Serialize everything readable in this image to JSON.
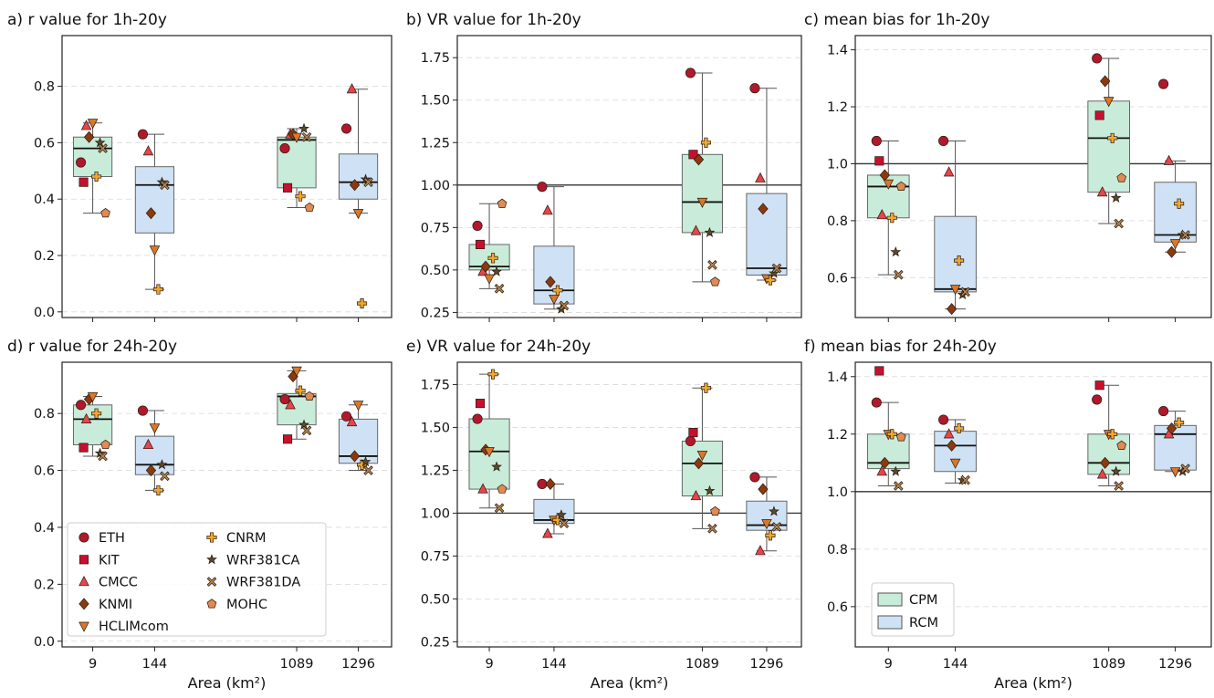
{
  "figure": {
    "xlabel": "Area (km²)"
  },
  "colors": {
    "CPM": "#c8ecd9",
    "RCM": "#cfe2f5",
    "ETH": "#b2182b",
    "KIT": "#c8102e",
    "CMCC": "#e8444a",
    "KNMI": "#8b3a0f",
    "HCLIMcom": "#d9782b",
    "CNRM": "#f2a72c",
    "WRF381CA": "#5a4a2a",
    "WRF381DA": "#b8864e",
    "MOHC": "#e08a54"
  },
  "legend_models": [
    {
      "name": "ETH",
      "marker": "circle",
      "icon": "circle-icon"
    },
    {
      "name": "KIT",
      "marker": "square",
      "icon": "square-icon"
    },
    {
      "name": "CMCC",
      "marker": "triangle-up",
      "icon": "triangle-up-icon"
    },
    {
      "name": "KNMI",
      "marker": "diamond",
      "icon": "diamond-icon"
    },
    {
      "name": "HCLIMcom",
      "marker": "triangle-down",
      "icon": "triangle-down-icon"
    },
    {
      "name": "CNRM",
      "marker": "plus",
      "icon": "plus-icon"
    },
    {
      "name": "WRF381CA",
      "marker": "star",
      "icon": "star-icon"
    },
    {
      "name": "WRF381DA",
      "marker": "x",
      "icon": "x-icon"
    },
    {
      "name": "MOHC",
      "marker": "pentagon",
      "icon": "pentagon-icon"
    }
  ],
  "legend_types": [
    "CPM",
    "RCM"
  ],
  "chart_data": [
    {
      "type": "box",
      "title": "a) r value for 1h-20y",
      "categories": [
        "9",
        "144",
        "1089",
        "1296"
      ],
      "box_types": [
        "CPM",
        "RCM",
        "CPM",
        "RCM"
      ],
      "ylim": [
        -0.02,
        0.98
      ],
      "yticks": [
        0.0,
        0.2,
        0.4,
        0.6,
        0.8
      ],
      "ytick_labels": [
        "0.0",
        "0.2",
        "0.4",
        "0.6",
        "0.8"
      ],
      "reference_line": null,
      "boxes": [
        {
          "q1": 0.48,
          "median": 0.58,
          "q3": 0.62,
          "whisker_low": 0.35,
          "whisker_high": 0.67
        },
        {
          "q1": 0.28,
          "median": 0.45,
          "q3": 0.515,
          "whisker_low": 0.08,
          "whisker_high": 0.63
        },
        {
          "q1": 0.44,
          "median": 0.61,
          "q3": 0.62,
          "whisker_low": 0.37,
          "whisker_high": 0.65
        },
        {
          "q1": 0.4,
          "median": 0.46,
          "q3": 0.56,
          "whisker_low": 0.35,
          "whisker_high": 0.79
        }
      ],
      "points": {
        "ETH": [
          0.53,
          0.63,
          0.58,
          0.65
        ],
        "KIT": [
          0.46,
          null,
          0.44,
          null
        ],
        "CMCC": [
          0.66,
          0.57,
          0.63,
          0.79
        ],
        "KNMI": [
          0.62,
          0.35,
          0.63,
          0.45
        ],
        "HCLIMcom": [
          0.67,
          0.22,
          0.62,
          0.35
        ],
        "CNRM": [
          0.48,
          0.08,
          0.41,
          0.03
        ],
        "WRF381CA": [
          0.6,
          0.46,
          0.65,
          0.47
        ],
        "WRF381DA": [
          0.58,
          0.45,
          0.62,
          0.46
        ],
        "MOHC": [
          0.35,
          null,
          0.37,
          null
        ]
      }
    },
    {
      "type": "box",
      "title": "b) VR value for 1h-20y",
      "categories": [
        "9",
        "144",
        "1089",
        "1296"
      ],
      "box_types": [
        "CPM",
        "RCM",
        "CPM",
        "RCM"
      ],
      "ylim": [
        0.22,
        1.88
      ],
      "yticks": [
        0.25,
        0.5,
        0.75,
        1.0,
        1.25,
        1.5,
        1.75
      ],
      "ytick_labels": [
        "0.25",
        "0.50",
        "0.75",
        "1.00",
        "1.25",
        "1.50",
        "1.75"
      ],
      "reference_line": 1.0,
      "boxes": [
        {
          "q1": 0.5,
          "median": 0.52,
          "q3": 0.65,
          "whisker_low": 0.39,
          "whisker_high": 0.89
        },
        {
          "q1": 0.3,
          "median": 0.38,
          "q3": 0.64,
          "whisker_low": 0.27,
          "whisker_high": 0.99
        },
        {
          "q1": 0.72,
          "median": 0.9,
          "q3": 1.18,
          "whisker_low": 0.43,
          "whisker_high": 1.66
        },
        {
          "q1": 0.47,
          "median": 0.51,
          "q3": 0.95,
          "whisker_low": 0.44,
          "whisker_high": 1.57
        }
      ],
      "points": {
        "ETH": [
          0.76,
          0.99,
          1.66,
          1.57
        ],
        "KIT": [
          0.65,
          null,
          1.18,
          null
        ],
        "CMCC": [
          0.49,
          0.85,
          0.73,
          1.04
        ],
        "KNMI": [
          0.52,
          0.43,
          1.15,
          0.86
        ],
        "HCLIMcom": [
          0.45,
          0.33,
          0.9,
          0.45
        ],
        "CNRM": [
          0.57,
          0.38,
          1.25,
          0.44
        ],
        "WRF381CA": [
          0.49,
          0.27,
          0.72,
          0.48
        ],
        "WRF381DA": [
          0.39,
          0.29,
          0.53,
          0.51
        ],
        "MOHC": [
          0.89,
          null,
          0.43,
          null
        ]
      }
    },
    {
      "type": "box",
      "title": "c) mean bias for 1h-20y",
      "categories": [
        "9",
        "144",
        "1089",
        "1296"
      ],
      "box_types": [
        "CPM",
        "RCM",
        "CPM",
        "RCM"
      ],
      "ylim": [
        0.46,
        1.45
      ],
      "yticks": [
        0.6,
        0.8,
        1.0,
        1.2,
        1.4
      ],
      "ytick_labels": [
        "0.6",
        "0.8",
        "1.0",
        "1.2",
        "1.4"
      ],
      "reference_line": 1.0,
      "boxes": [
        {
          "q1": 0.81,
          "median": 0.92,
          "q3": 0.96,
          "whisker_low": 0.61,
          "whisker_high": 1.08
        },
        {
          "q1": 0.55,
          "median": 0.56,
          "q3": 0.815,
          "whisker_low": 0.49,
          "whisker_high": 1.08
        },
        {
          "q1": 0.9,
          "median": 1.09,
          "q3": 1.22,
          "whisker_low": 0.79,
          "whisker_high": 1.37
        },
        {
          "q1": 0.725,
          "median": 0.75,
          "q3": 0.935,
          "whisker_low": 0.69,
          "whisker_high": 1.01
        }
      ],
      "points": {
        "ETH": [
          1.08,
          1.08,
          1.37,
          1.28
        ],
        "KIT": [
          1.01,
          null,
          1.17,
          null
        ],
        "CMCC": [
          0.82,
          0.97,
          0.9,
          1.01
        ],
        "KNMI": [
          0.96,
          0.49,
          1.29,
          0.69
        ],
        "HCLIMcom": [
          0.93,
          0.56,
          1.22,
          0.72
        ],
        "CNRM": [
          0.81,
          0.66,
          1.09,
          0.86
        ],
        "WRF381CA": [
          0.69,
          0.54,
          0.88,
          0.75
        ],
        "WRF381DA": [
          0.61,
          0.55,
          0.79,
          0.75
        ],
        "MOHC": [
          0.92,
          null,
          0.95,
          null
        ]
      }
    },
    {
      "type": "box",
      "title": "d) r value for 24h-20y",
      "categories": [
        "9",
        "144",
        "1089",
        "1296"
      ],
      "box_types": [
        "CPM",
        "RCM",
        "CPM",
        "RCM"
      ],
      "ylim": [
        -0.02,
        0.98
      ],
      "yticks": [
        0.0,
        0.2,
        0.4,
        0.6,
        0.8
      ],
      "ytick_labels": [
        "0.0",
        "0.2",
        "0.4",
        "0.6",
        "0.8"
      ],
      "reference_line": null,
      "boxes": [
        {
          "q1": 0.69,
          "median": 0.78,
          "q3": 0.83,
          "whisker_low": 0.65,
          "whisker_high": 0.86
        },
        {
          "q1": 0.585,
          "median": 0.62,
          "q3": 0.72,
          "whisker_low": 0.53,
          "whisker_high": 0.81
        },
        {
          "q1": 0.76,
          "median": 0.86,
          "q3": 0.87,
          "whisker_low": 0.71,
          "whisker_high": 0.95
        },
        {
          "q1": 0.625,
          "median": 0.65,
          "q3": 0.78,
          "whisker_low": 0.6,
          "whisker_high": 0.83
        }
      ],
      "points": {
        "ETH": [
          0.83,
          0.81,
          0.85,
          0.79
        ],
        "KIT": [
          0.68,
          null,
          0.71,
          null
        ],
        "CMCC": [
          0.78,
          0.69,
          0.83,
          0.77
        ],
        "KNMI": [
          0.85,
          0.6,
          0.93,
          0.65
        ],
        "HCLIMcom": [
          0.86,
          0.75,
          0.95,
          0.83
        ],
        "CNRM": [
          0.8,
          0.53,
          0.88,
          0.62
        ],
        "WRF381CA": [
          0.66,
          0.62,
          0.76,
          0.63
        ],
        "WRF381DA": [
          0.65,
          0.58,
          0.74,
          0.6
        ],
        "MOHC": [
          0.69,
          null,
          0.86,
          null
        ]
      }
    },
    {
      "type": "box",
      "title": "e) VR value for 24h-20y",
      "categories": [
        "9",
        "144",
        "1089",
        "1296"
      ],
      "box_types": [
        "CPM",
        "RCM",
        "CPM",
        "RCM"
      ],
      "ylim": [
        0.22,
        1.88
      ],
      "yticks": [
        0.25,
        0.5,
        0.75,
        1.0,
        1.25,
        1.5,
        1.75
      ],
      "ytick_labels": [
        "0.25",
        "0.50",
        "0.75",
        "1.00",
        "1.25",
        "1.50",
        "1.75"
      ],
      "reference_line": 1.0,
      "boxes": [
        {
          "q1": 1.14,
          "median": 1.36,
          "q3": 1.55,
          "whisker_low": 1.03,
          "whisker_high": 1.81
        },
        {
          "q1": 0.94,
          "median": 0.96,
          "q3": 1.08,
          "whisker_low": 0.88,
          "whisker_high": 1.17
        },
        {
          "q1": 1.1,
          "median": 1.29,
          "q3": 1.42,
          "whisker_low": 0.91,
          "whisker_high": 1.73
        },
        {
          "q1": 0.9,
          "median": 0.93,
          "q3": 1.07,
          "whisker_low": 0.78,
          "whisker_high": 1.21
        }
      ],
      "points": {
        "ETH": [
          1.55,
          1.17,
          1.42,
          1.21
        ],
        "KIT": [
          1.64,
          null,
          1.47,
          null
        ],
        "CMCC": [
          1.14,
          0.88,
          1.1,
          0.78
        ],
        "KNMI": [
          1.37,
          1.17,
          1.29,
          1.14
        ],
        "HCLIMcom": [
          1.36,
          0.96,
          1.34,
          0.94
        ],
        "CNRM": [
          1.81,
          0.96,
          1.73,
          0.87
        ],
        "WRF381CA": [
          1.27,
          0.99,
          1.13,
          1.01
        ],
        "WRF381DA": [
          1.03,
          0.94,
          0.91,
          0.92
        ],
        "MOHC": [
          1.14,
          null,
          1.01,
          null
        ]
      }
    },
    {
      "type": "box",
      "title": "f) mean bias for 24h-20y",
      "categories": [
        "9",
        "144",
        "1089",
        "1296"
      ],
      "box_types": [
        "CPM",
        "RCM",
        "CPM",
        "RCM"
      ],
      "ylim": [
        0.46,
        1.45
      ],
      "yticks": [
        0.6,
        0.8,
        1.0,
        1.2,
        1.4
      ],
      "ytick_labels": [
        "0.6",
        "0.8",
        "1.0",
        "1.2",
        "1.4"
      ],
      "reference_line": 1.0,
      "boxes": [
        {
          "q1": 1.08,
          "median": 1.1,
          "q3": 1.2,
          "whisker_low": 1.02,
          "whisker_high": 1.31
        },
        {
          "q1": 1.07,
          "median": 1.16,
          "q3": 1.21,
          "whisker_low": 1.03,
          "whisker_high": 1.25
        },
        {
          "q1": 1.06,
          "median": 1.1,
          "q3": 1.2,
          "whisker_low": 1.02,
          "whisker_high": 1.37
        },
        {
          "q1": 1.075,
          "median": 1.2,
          "q3": 1.23,
          "whisker_low": 1.07,
          "whisker_high": 1.28
        }
      ],
      "points": {
        "ETH": [
          1.31,
          1.25,
          1.32,
          1.28
        ],
        "KIT": [
          1.42,
          null,
          1.37,
          null
        ],
        "CMCC": [
          1.07,
          1.2,
          1.06,
          1.2
        ],
        "KNMI": [
          1.1,
          1.16,
          1.1,
          1.22
        ],
        "HCLIMcom": [
          1.2,
          1.1,
          1.2,
          1.07
        ],
        "CNRM": [
          1.2,
          1.22,
          1.2,
          1.24
        ],
        "WRF381CA": [
          1.07,
          1.04,
          1.07,
          1.07
        ],
        "WRF381DA": [
          1.02,
          1.04,
          1.02,
          1.08
        ],
        "MOHC": [
          1.19,
          null,
          1.16,
          null
        ]
      }
    }
  ]
}
